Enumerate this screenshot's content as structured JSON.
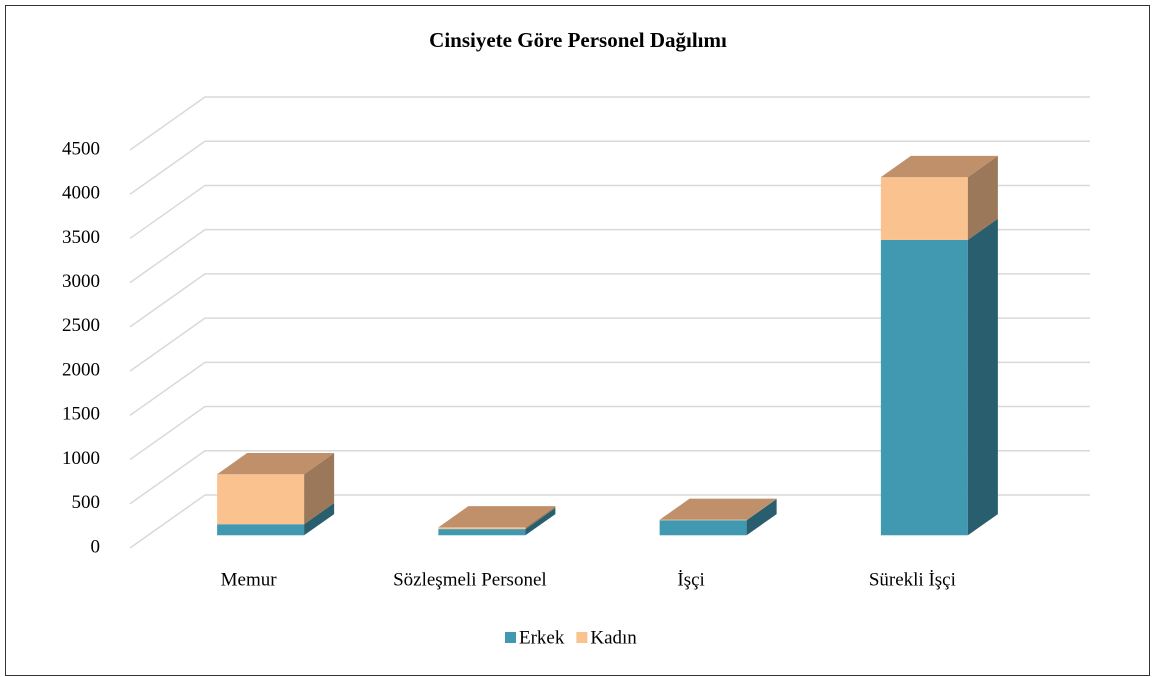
{
  "chart_data": {
    "type": "bar3d_stacked",
    "title": "Cinsiyete Göre Personel Dağılımı",
    "categories": [
      "Memur",
      "Sözleşmeli Personel",
      "İşçi",
      "Sürekli İşçi"
    ],
    "series": [
      {
        "name": "Erkek",
        "color": "#4198b1",
        "values": [
          125,
          70,
          170,
          3340
        ]
      },
      {
        "name": "Kadın",
        "color": "#fac28f",
        "values": [
          565,
          20,
          5,
          710
        ]
      }
    ],
    "ylim": [
      0,
      4500
    ],
    "yticks": [
      0,
      500,
      1000,
      1500,
      2000,
      2500,
      3000,
      3500,
      4000,
      4500
    ],
    "grid": true,
    "legend": "bottom"
  }
}
